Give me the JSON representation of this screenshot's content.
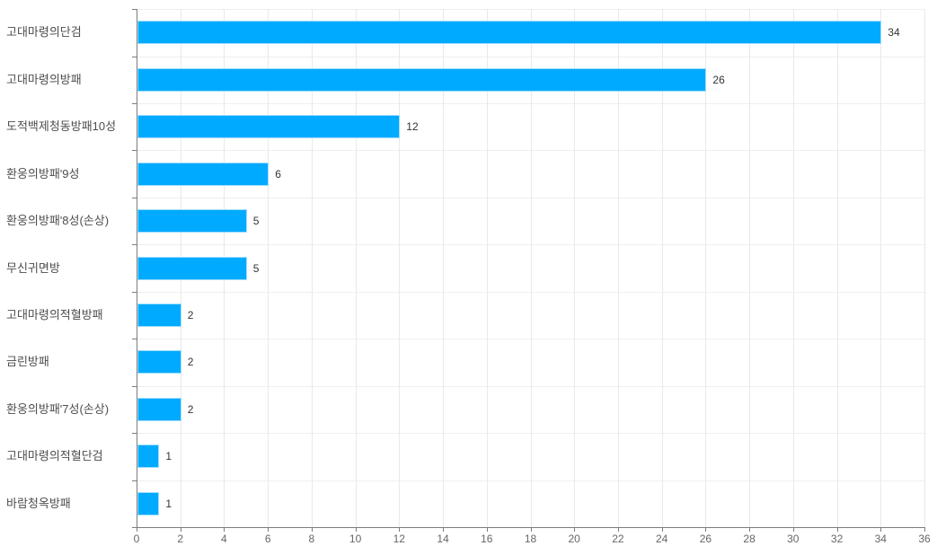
{
  "chart_data": {
    "type": "bar",
    "orientation": "horizontal",
    "title": "",
    "xlabel": "",
    "ylabel": "",
    "categories": [
      "고대마령의단검",
      "고대마령의방패",
      "도적백제청동방패10성",
      "환웅의방패'9성",
      "환웅의방패'8성(손상)",
      "무신귀면방",
      "고대마령의적혈방패",
      "금린방패",
      "환웅의방패'7성(손상)",
      "고대마령의적혈단검",
      "바람청옥방패"
    ],
    "values": [
      34,
      26,
      12,
      6,
      5,
      5,
      2,
      2,
      2,
      1,
      1
    ],
    "value_labels": [
      "34",
      "26",
      "12",
      "6",
      "5",
      "5",
      "2",
      "2",
      "2",
      "1",
      "1"
    ],
    "x_ticks": [
      0,
      2,
      4,
      6,
      8,
      10,
      12,
      14,
      16,
      18,
      20,
      22,
      24,
      26,
      28,
      30,
      32,
      34,
      36
    ],
    "xlim": [
      0,
      36
    ],
    "grid": true,
    "legend": "none",
    "colors": {
      "bar": "#00aaff",
      "bar_border": "#9bdcff",
      "axis": "#7d7d7d",
      "h_grid": "#efefef",
      "v_grid": "#e9e9e9",
      "category_label": "#4d4d4d",
      "tick_label": "#666666",
      "value_label": "#333333",
      "background": "#ffffff"
    }
  }
}
